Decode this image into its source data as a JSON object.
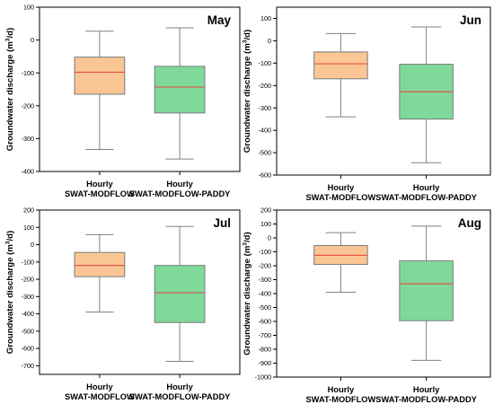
{
  "chart_data": [
    {
      "type": "box",
      "month": "May",
      "ylabel_main": "Groundwater discharge (m",
      "ylabel_sup": "3",
      "ylabel_tail": "/d)",
      "ylim": [
        -400,
        100
      ],
      "yticks": [
        100,
        0,
        -100,
        -200,
        -300,
        -400
      ],
      "categories": [
        {
          "line1": "Hourly",
          "line2": "SWAT-MODFLOW"
        },
        {
          "line1": "Hourly",
          "line2": "SWAT-MODFLOW-PADDY"
        }
      ],
      "boxes": [
        {
          "min": -333,
          "q1": -165,
          "median": -98,
          "q3": -52,
          "max": 27,
          "color": "#FBC695"
        },
        {
          "min": -362,
          "q1": -222,
          "median": -143,
          "q3": -80,
          "max": 37,
          "color": "#7ED99A"
        }
      ]
    },
    {
      "type": "box",
      "month": "Jun",
      "ylabel_main": "Groundwater discharge (m",
      "ylabel_sup": "3",
      "ylabel_tail": "/d)",
      "ylim": [
        -600,
        150
      ],
      "yticks": [
        100,
        0,
        -100,
        -200,
        -300,
        -400,
        -500,
        -600
      ],
      "categories": [
        {
          "line1": "Hourly",
          "line2": "SWAT-MODFLOW"
        },
        {
          "line1": "Hourly",
          "line2": "SWAT-MODFLOW-PADDY"
        }
      ],
      "boxes": [
        {
          "min": -340,
          "q1": -170,
          "median": -103,
          "q3": -50,
          "max": 32,
          "color": "#FBC695"
        },
        {
          "min": -545,
          "q1": -350,
          "median": -228,
          "q3": -105,
          "max": 62,
          "color": "#7ED99A"
        }
      ]
    },
    {
      "type": "box",
      "month": "Jul",
      "ylabel_main": "Groundwater discharge (m",
      "ylabel_sup": "3",
      "ylabel_tail": "/d)",
      "ylim": [
        -750,
        200
      ],
      "yticks": [
        200,
        100,
        0,
        -100,
        -200,
        -300,
        -400,
        -500,
        -600,
        -700
      ],
      "categories": [
        {
          "line1": "Hourly",
          "line2": "SWAT-MODFLOW"
        },
        {
          "line1": "Hourly",
          "line2": "SWAT-MODFLOW-PADDY"
        }
      ],
      "boxes": [
        {
          "min": -390,
          "q1": -185,
          "median": -120,
          "q3": -45,
          "max": 58,
          "color": "#FBC695"
        },
        {
          "min": -675,
          "q1": -450,
          "median": -278,
          "q3": -120,
          "max": 105,
          "color": "#7ED99A"
        }
      ]
    },
    {
      "type": "box",
      "month": "Aug",
      "ylabel_main": "Groundwater discharge (m",
      "ylabel_sup": "3",
      "ylabel_tail": "/d)",
      "ylim": [
        -1000,
        200
      ],
      "yticks": [
        200,
        100,
        0,
        -100,
        -200,
        -300,
        -400,
        -500,
        -600,
        -700,
        -800,
        -900,
        -1000
      ],
      "categories": [
        {
          "line1": "Hourly",
          "line2": "SWAT-MODFLOW"
        },
        {
          "line1": "Hourly",
          "line2": "SWAT-MODFLOW-PADDY"
        }
      ],
      "boxes": [
        {
          "min": -390,
          "q1": -190,
          "median": -125,
          "q3": -55,
          "max": 38,
          "color": "#FBC695"
        },
        {
          "min": -880,
          "q1": -595,
          "median": -330,
          "q3": -165,
          "max": 85,
          "color": "#7ED99A"
        }
      ]
    }
  ],
  "colors": {
    "median": "#E0584A",
    "whisker": "#808080",
    "box_edge": "#7a7a7a",
    "frame": "#000000"
  }
}
